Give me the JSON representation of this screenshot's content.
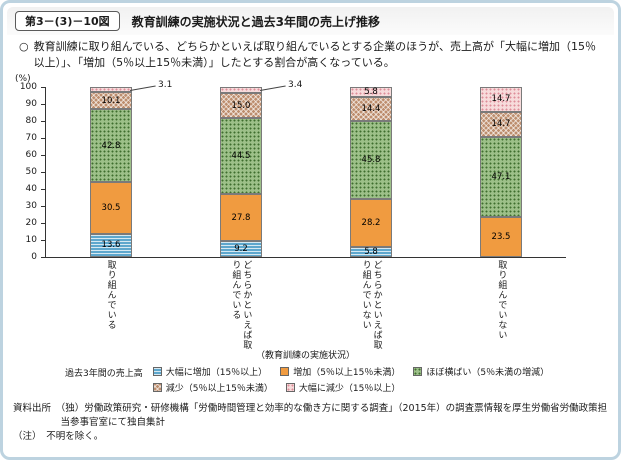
{
  "header": {
    "figure_number": "第3－(3)－10図",
    "title": "教育訓練の実施状況と過去3年間の売上げ推移"
  },
  "summary": {
    "bullet": "○",
    "text": "教育訓練に取り組んでいる、どちらかといえば取り組んでいるとする企業のほうが、売上高が「大幅に増加（15％以上）」、「増加（5％以上15％未満）」したとする割合が高くなっている。"
  },
  "chart_data": {
    "type": "bar",
    "stacked": true,
    "percent_total": 100,
    "title": "教育訓練の実施状況と過去3年間の売上げ推移",
    "y_unit_label": "(%)",
    "ylim": [
      0,
      100
    ],
    "yticks": [
      0,
      10,
      20,
      30,
      40,
      50,
      60,
      70,
      80,
      90,
      100
    ],
    "xlabel": "（教育訓練の実施状況）",
    "grid": false,
    "legend_position": "bottom",
    "categories": [
      "取り組んでいる",
      "どちらかといえば取り組んでいる",
      "どちらかといえば取り組んでいない",
      "取り組んでいない"
    ],
    "series": [
      {
        "name": "大幅に増加（15％以上）",
        "values": [
          13.6,
          9.2,
          5.8,
          0
        ],
        "color": "#5ea7cd",
        "pattern": "hstripes"
      },
      {
        "name": "増加（5％以上15％未満）",
        "values": [
          30.5,
          27.8,
          28.2,
          23.5
        ],
        "color": "#f09b40",
        "pattern": "solid"
      },
      {
        "name": "ほぼ横ばい（5％未満の増減）",
        "values": [
          42.8,
          44.5,
          45.8,
          47.1
        ],
        "color": "#9dc089",
        "pattern": "dots-dark"
      },
      {
        "name": "減少（5％以上15％未満）",
        "values": [
          10.1,
          15.0,
          14.4,
          14.7
        ],
        "color": "#bd8e6e",
        "pattern": "crosshatch"
      },
      {
        "name": "大幅に減少（15％以上）",
        "values": [
          3.1,
          3.4,
          5.8,
          14.7
        ],
        "color": "#f7dbdb",
        "pattern": "dots-light"
      }
    ],
    "callouts": [
      {
        "bar": 0,
        "series": 4,
        "label": "3.1"
      },
      {
        "bar": 1,
        "series": 4,
        "label": "3.4"
      }
    ]
  },
  "legend": {
    "title": "過去3年間の売上高"
  },
  "footer": {
    "source": "資料出所　（独）労働政策研究・研修機構「労働時間管理と効率的な働き方に関する調査」（2015年）の調査票情報を厚生労働省労働政策担当参事官室にて独自集計",
    "note": "（注）　不明を除く。"
  }
}
